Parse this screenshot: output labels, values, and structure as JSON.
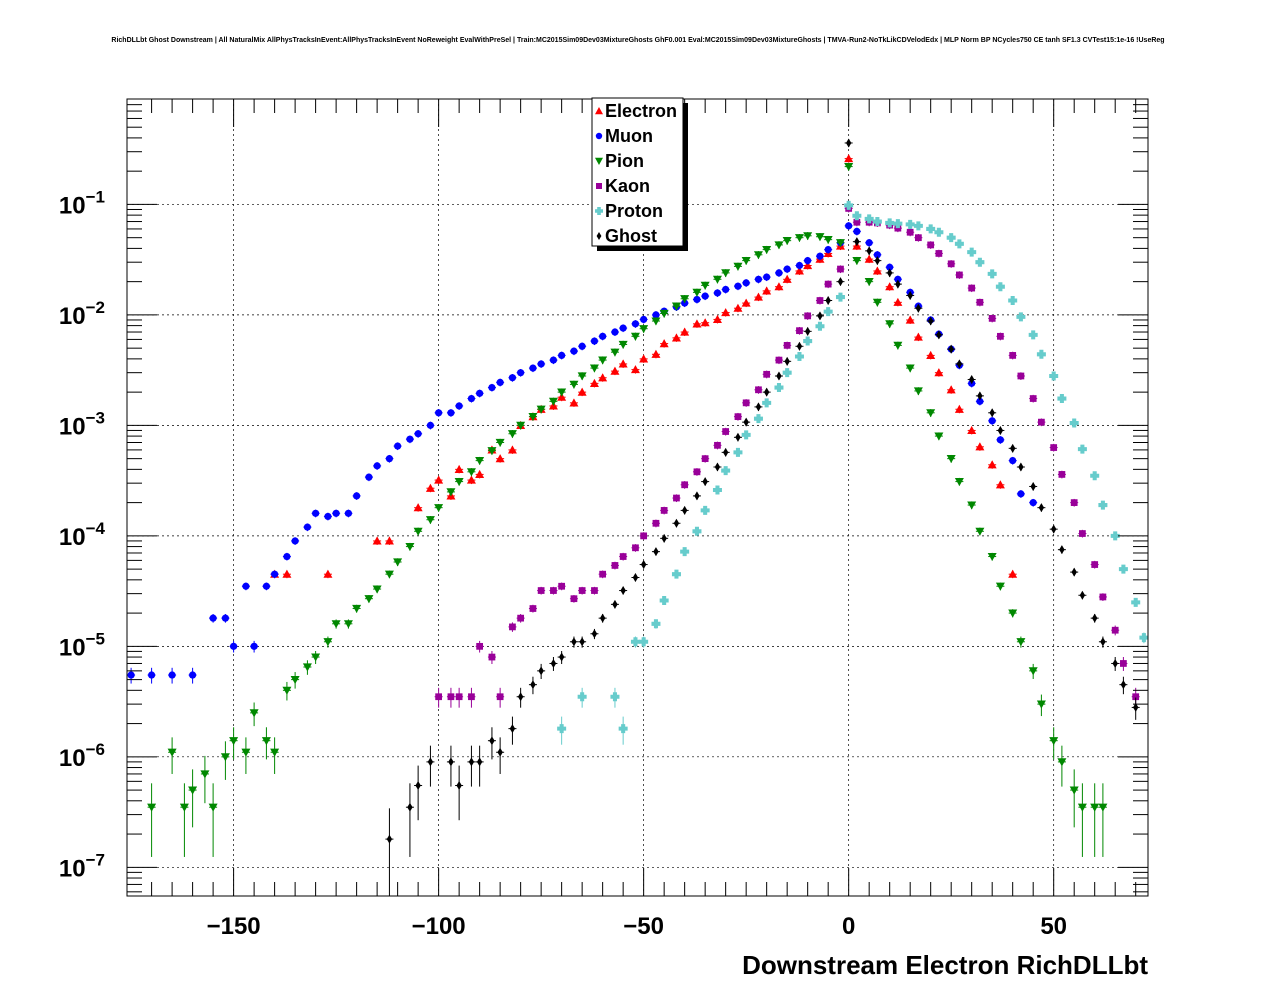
{
  "chart_data": {
    "type": "scatter",
    "title": "RichDLLbt Ghost Downstream | All NaturalMix AllPhysTracksInEvent:AllPhysTracksInEvent NoReweight EvalWithPreSel | Train:MC2015Sim09Dev03MixtureGhosts GhF0.001 Eval:MC2015Sim09Dev03MixtureGhosts | TMVA-Run2-NoTkLikCDVelodEdx | MLP Norm BP NCycles750 CE tanh SF1.3 CVTest15:1e-16 !UseReg",
    "xlabel": "Downstream Electron RichDLLbt",
    "ylabel": "",
    "xlim": [
      -176,
      73
    ],
    "ylim": [
      5.5e-08,
      0.9
    ],
    "y_scale": "log",
    "grid": true,
    "legend_position": "top-center",
    "x_ticks": [
      -150,
      -100,
      -50,
      0,
      50
    ],
    "x_tick_labels": [
      "−150",
      "−100",
      "−50",
      "0",
      "50"
    ],
    "y_ticks": [
      1e-07,
      1e-06,
      1e-05,
      0.0001,
      0.001,
      0.01,
      0.1
    ],
    "y_tick_mantissa": [
      "10",
      "10",
      "10",
      "10",
      "10",
      "10",
      "10"
    ],
    "y_tick_exponent": [
      "−7",
      "−6",
      "−5",
      "−4",
      "−3",
      "−2",
      "−1"
    ],
    "series": [
      {
        "name": "Electron",
        "color": "#ff0000",
        "marker": "triangle-up",
        "x": [
          -140,
          -137,
          -127,
          -115,
          -112,
          -105,
          -102,
          -100,
          -97,
          -95,
          -92,
          -90,
          -87,
          -85,
          -82,
          -80,
          -77,
          -75,
          -72,
          -70,
          -67,
          -65,
          -62,
          -60,
          -57,
          -55,
          -52,
          -50,
          -47,
          -45,
          -42,
          -40,
          -37,
          -35,
          -32,
          -30,
          -27,
          -25,
          -22,
          -20,
          -17,
          -15,
          -12,
          -10,
          -7,
          -5,
          -2,
          0,
          2,
          5,
          7,
          10,
          12,
          15,
          17,
          20,
          22,
          25,
          27,
          30,
          32,
          35,
          37,
          40
        ],
        "y": [
          4.5e-05,
          4.5e-05,
          4.5e-05,
          9e-05,
          9e-05,
          0.00018,
          0.00027,
          0.00032,
          0.00023,
          0.0004,
          0.00032,
          0.00036,
          0.0006,
          0.0005,
          0.0006,
          0.001,
          0.0012,
          0.0014,
          0.0015,
          0.0018,
          0.0016,
          0.002,
          0.0024,
          0.0027,
          0.0031,
          0.0036,
          0.0032,
          0.004,
          0.0044,
          0.0055,
          0.0062,
          0.007,
          0.0083,
          0.0085,
          0.0091,
          0.0105,
          0.0115,
          0.0128,
          0.0145,
          0.0165,
          0.018,
          0.021,
          0.025,
          0.028,
          0.032,
          0.036,
          0.042,
          0.26,
          0.042,
          0.032,
          0.025,
          0.018,
          0.013,
          0.009,
          0.0063,
          0.0043,
          0.003,
          0.0021,
          0.0014,
          0.0009,
          0.00064,
          0.00044,
          0.00029,
          4.5e-05
        ]
      },
      {
        "name": "Muon",
        "color": "#0000ff",
        "marker": "circle",
        "x": [
          -175,
          -170,
          -165,
          -160,
          -155,
          -152,
          -150,
          -147,
          -145,
          -142,
          -140,
          -137,
          -135,
          -132,
          -130,
          -127,
          -125,
          -122,
          -120,
          -117,
          -115,
          -112,
          -110,
          -107,
          -105,
          -102,
          -100,
          -97,
          -95,
          -92,
          -90,
          -87,
          -85,
          -82,
          -80,
          -77,
          -75,
          -72,
          -70,
          -67,
          -65,
          -62,
          -60,
          -57,
          -55,
          -52,
          -50,
          -47,
          -45,
          -42,
          -40,
          -37,
          -35,
          -32,
          -30,
          -27,
          -25,
          -22,
          -20,
          -17,
          -15,
          -12,
          -10,
          -7,
          -5,
          -2,
          0,
          2,
          5,
          7,
          10,
          12,
          15,
          17,
          20,
          22,
          25,
          27,
          30,
          32,
          35,
          37,
          40,
          42,
          45
        ],
        "y": [
          5.5e-06,
          5.5e-06,
          5.5e-06,
          5.5e-06,
          1.8e-05,
          1.8e-05,
          1e-05,
          3.5e-05,
          1e-05,
          3.5e-05,
          4.5e-05,
          6.5e-05,
          9e-05,
          0.00012,
          0.00016,
          0.00015,
          0.00016,
          0.00016,
          0.00023,
          0.00034,
          0.00043,
          0.0005,
          0.00065,
          0.00075,
          0.00084,
          0.001,
          0.0013,
          0.0013,
          0.0015,
          0.00175,
          0.00195,
          0.0022,
          0.00245,
          0.0027,
          0.003,
          0.0033,
          0.0036,
          0.0039,
          0.0043,
          0.0047,
          0.0052,
          0.0058,
          0.0064,
          0.007,
          0.0076,
          0.0083,
          0.0091,
          0.01,
          0.0108,
          0.0118,
          0.0128,
          0.0138,
          0.0148,
          0.0158,
          0.017,
          0.0182,
          0.0195,
          0.021,
          0.022,
          0.024,
          0.026,
          0.028,
          0.031,
          0.034,
          0.039,
          0.045,
          0.064,
          0.057,
          0.045,
          0.035,
          0.027,
          0.021,
          0.016,
          0.012,
          0.009,
          0.0067,
          0.0049,
          0.0035,
          0.0024,
          0.00165,
          0.0011,
          0.00074,
          0.00048,
          0.00024,
          0.0002
        ]
      },
      {
        "name": "Pion",
        "color": "#008800",
        "marker": "triangle-down",
        "x": [
          -170,
          -165,
          -162,
          -160,
          -157,
          -155,
          -152,
          -150,
          -147,
          -145,
          -142,
          -140,
          -137,
          -135,
          -132,
          -130,
          -127,
          -125,
          -122,
          -120,
          -117,
          -115,
          -112,
          -110,
          -107,
          -105,
          -102,
          -100,
          -97,
          -95,
          -92,
          -90,
          -87,
          -85,
          -82,
          -80,
          -77,
          -75,
          -72,
          -70,
          -67,
          -65,
          -62,
          -60,
          -57,
          -55,
          -52,
          -50,
          -47,
          -45,
          -42,
          -40,
          -37,
          -35,
          -32,
          -30,
          -27,
          -25,
          -22,
          -20,
          -17,
          -15,
          -12,
          -10,
          -7,
          -5,
          -2,
          0,
          2,
          5,
          7,
          10,
          12,
          15,
          17,
          20,
          22,
          25,
          27,
          30,
          32,
          35,
          37,
          40,
          42,
          45,
          47,
          50,
          52,
          55,
          57,
          60,
          62
        ],
        "y": [
          3.5e-07,
          1.1e-06,
          3.5e-07,
          5e-07,
          7e-07,
          3.5e-07,
          1e-06,
          1.4e-06,
          1.1e-06,
          2.5e-06,
          1.4e-06,
          1.1e-06,
          4e-06,
          5e-06,
          6.5e-06,
          8e-06,
          1.1e-05,
          1.6e-05,
          1.6e-05,
          2.2e-05,
          2.7e-05,
          3.3e-05,
          4.5e-05,
          5.8e-05,
          8e-05,
          0.00011,
          0.00014,
          0.00018,
          0.00025,
          0.00031,
          0.00038,
          0.00048,
          0.00059,
          0.0007,
          0.00084,
          0.001,
          0.0012,
          0.0014,
          0.00165,
          0.002,
          0.00235,
          0.0028,
          0.0033,
          0.0039,
          0.0046,
          0.0054,
          0.0064,
          0.0075,
          0.0088,
          0.0103,
          0.012,
          0.014,
          0.016,
          0.0185,
          0.021,
          0.024,
          0.0275,
          0.031,
          0.035,
          0.039,
          0.043,
          0.047,
          0.05,
          0.052,
          0.051,
          0.048,
          0.045,
          0.22,
          0.031,
          0.02,
          0.013,
          0.0083,
          0.0053,
          0.0033,
          0.00205,
          0.0013,
          0.0008,
          0.0005,
          0.00031,
          0.00019,
          0.00011,
          6.5e-05,
          3.5e-05,
          2e-05,
          1.1e-05,
          6e-06,
          3e-06,
          1.4e-06,
          9e-07,
          5e-07,
          3.5e-07,
          3.5e-07,
          3.5e-07
        ]
      },
      {
        "name": "Kaon",
        "color": "#990099",
        "marker": "square",
        "x": [
          -100,
          -97,
          -95,
          -92,
          -90,
          -87,
          -85,
          -82,
          -80,
          -77,
          -75,
          -72,
          -70,
          -67,
          -65,
          -62,
          -60,
          -57,
          -55,
          -52,
          -50,
          -47,
          -45,
          -42,
          -40,
          -37,
          -35,
          -32,
          -30,
          -27,
          -25,
          -22,
          -20,
          -17,
          -15,
          -12,
          -10,
          -7,
          -5,
          -2,
          0,
          2,
          5,
          7,
          10,
          12,
          15,
          17,
          20,
          22,
          25,
          27,
          30,
          32,
          35,
          37,
          40,
          42,
          45,
          47,
          50,
          52,
          55,
          57,
          60,
          62,
          65,
          67,
          70
        ],
        "y": [
          3.5e-06,
          3.5e-06,
          3.5e-06,
          3.5e-06,
          1e-05,
          8e-06,
          3.5e-06,
          1.5e-05,
          1.8e-05,
          2.2e-05,
          3.2e-05,
          3.2e-05,
          3.5e-05,
          2.7e-05,
          3.2e-05,
          3.2e-05,
          4.5e-05,
          5.4e-05,
          6.5e-05,
          7.8e-05,
          0.0001,
          0.00013,
          0.00017,
          0.00022,
          0.00029,
          0.00038,
          0.0005,
          0.00066,
          0.00088,
          0.0012,
          0.0016,
          0.0021,
          0.0029,
          0.0039,
          0.0053,
          0.0072,
          0.0098,
          0.0135,
          0.019,
          0.026,
          0.092,
          0.069,
          0.069,
          0.068,
          0.065,
          0.061,
          0.056,
          0.05,
          0.043,
          0.036,
          0.029,
          0.023,
          0.0175,
          0.013,
          0.0093,
          0.0064,
          0.0043,
          0.0028,
          0.00175,
          0.00107,
          0.00063,
          0.00036,
          0.0002,
          0.000105,
          5.5e-05,
          2.8e-05,
          1.4e-05,
          7e-06,
          3.5e-06
        ]
      },
      {
        "name": "Proton",
        "color": "#66cccc",
        "marker": "cross",
        "x": [
          -70,
          -65,
          -57,
          -55,
          -52,
          -50,
          -47,
          -45,
          -42,
          -40,
          -37,
          -35,
          -32,
          -30,
          -27,
          -25,
          -22,
          -20,
          -17,
          -15,
          -12,
          -10,
          -7,
          -5,
          -2,
          0,
          2,
          5,
          7,
          10,
          12,
          15,
          17,
          20,
          22,
          25,
          27,
          30,
          32,
          35,
          37,
          40,
          42,
          45,
          47,
          50,
          52,
          55,
          57,
          60,
          62,
          65,
          67,
          70,
          72
        ],
        "y": [
          1.8e-06,
          3.5e-06,
          3.5e-06,
          1.8e-06,
          1.1e-05,
          1.1e-05,
          1.6e-05,
          2.6e-05,
          4.5e-05,
          7.2e-05,
          0.00011,
          0.00017,
          0.00026,
          0.00039,
          0.00057,
          0.00082,
          0.00115,
          0.0016,
          0.0022,
          0.003,
          0.0042,
          0.0058,
          0.0079,
          0.0107,
          0.0145,
          0.098,
          0.079,
          0.074,
          0.07,
          0.068,
          0.067,
          0.066,
          0.064,
          0.06,
          0.056,
          0.05,
          0.044,
          0.037,
          0.03,
          0.0235,
          0.018,
          0.0135,
          0.0096,
          0.0066,
          0.0044,
          0.0028,
          0.00175,
          0.00105,
          0.00061,
          0.00035,
          0.00019,
          0.0001,
          5e-05,
          2.5e-05,
          1.2e-05
        ]
      },
      {
        "name": "Ghost",
        "color": "#000000",
        "marker": "diamond",
        "x": [
          -112,
          -107,
          -105,
          -102,
          -97,
          -95,
          -92,
          -90,
          -87,
          -85,
          -82,
          -80,
          -77,
          -75,
          -72,
          -70,
          -67,
          -65,
          -62,
          -60,
          -57,
          -55,
          -52,
          -50,
          -47,
          -45,
          -42,
          -40,
          -37,
          -35,
          -32,
          -30,
          -27,
          -25,
          -22,
          -20,
          -17,
          -15,
          -12,
          -10,
          -7,
          -5,
          -2,
          0,
          2,
          5,
          7,
          10,
          12,
          15,
          17,
          20,
          22,
          25,
          27,
          30,
          32,
          35,
          37,
          40,
          42,
          45,
          47,
          50,
          52,
          55,
          57,
          60,
          62,
          65,
          67,
          70
        ],
        "y": [
          1.8e-07,
          3.5e-07,
          5.5e-07,
          9e-07,
          9e-07,
          5.5e-07,
          9e-07,
          9e-07,
          1.4e-06,
          1.1e-06,
          1.8e-06,
          3.5e-06,
          4.5e-06,
          6e-06,
          7e-06,
          8e-06,
          1.1e-05,
          1.1e-05,
          1.3e-05,
          1.8e-05,
          2.4e-05,
          3.2e-05,
          4.2e-05,
          5.5e-05,
          7.2e-05,
          9.5e-05,
          0.00013,
          0.00017,
          0.00023,
          0.00031,
          0.00042,
          0.00057,
          0.00078,
          0.00107,
          0.00147,
          0.002,
          0.0028,
          0.0038,
          0.0052,
          0.0071,
          0.0098,
          0.0135,
          0.02,
          0.36,
          0.046,
          0.038,
          0.031,
          0.024,
          0.019,
          0.015,
          0.0115,
          0.0088,
          0.0066,
          0.0049,
          0.0036,
          0.0026,
          0.00185,
          0.0013,
          0.0009,
          0.00062,
          0.00042,
          0.00028,
          0.00018,
          0.000115,
          7.5e-05,
          4.7e-05,
          2.9e-05,
          1.8e-05,
          1.1e-05,
          7e-06,
          4.5e-06,
          2.8e-06
        ]
      }
    ]
  }
}
